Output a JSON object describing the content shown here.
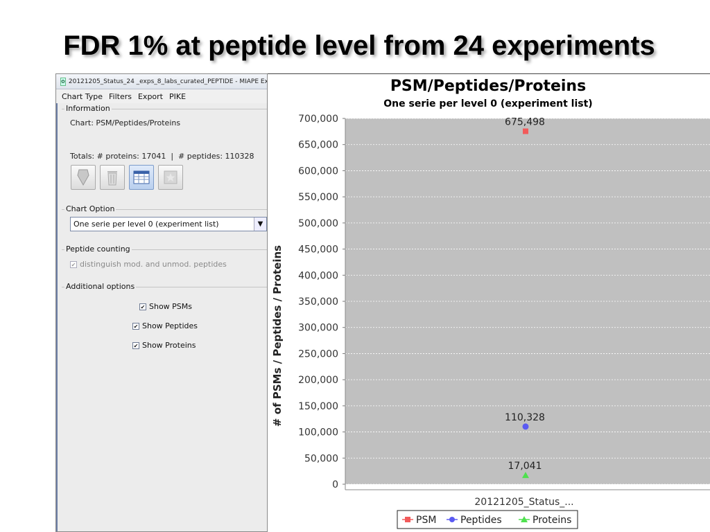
{
  "slide": {
    "title": "FDR 1% at peptide level from 24 experiments"
  },
  "window": {
    "title": "20121205_Status_24 _exps_8_labs_curated_PEPTIDE - MIAPE Ex",
    "menu": [
      "Chart Type",
      "Filters",
      "Export",
      "PIKE"
    ]
  },
  "information": {
    "label": "Information",
    "chart_text": "Chart: PSM/Peptides/Proteins",
    "totals_text": "Totals: # proteins: 17041  |  # peptides: 110328",
    "toolbar_icons": [
      "funnel-icon",
      "trash-icon",
      "table-icon",
      "star-icon"
    ]
  },
  "chart_option": {
    "label": "Chart Option",
    "selected": "One serie per level 0 (experiment list)"
  },
  "peptide_counting": {
    "label": "Peptide counting",
    "checkbox_label": "distinguish mod. and unmod. peptides",
    "checked": true,
    "enabled": false
  },
  "additional_options": {
    "label": "Additional options",
    "items": [
      {
        "label": "Show PSMs",
        "checked": true
      },
      {
        "label": "Show Peptides",
        "checked": true
      },
      {
        "label": "Show Proteins",
        "checked": true
      }
    ]
  },
  "colors": {
    "psm": "#f25a5a",
    "peptides": "#5a5af2",
    "proteins": "#4fe04f",
    "plot_bg": "#c0c0c0"
  },
  "chart_data": {
    "type": "scatter",
    "title": "PSM/Peptides/Proteins",
    "subtitle": "One serie per level 0 (experiment list)",
    "ylabel": "# of PSMs / Peptides / Proteins",
    "xlabel": "",
    "categories": [
      "20121205_Status_..."
    ],
    "ylim": [
      0,
      700000
    ],
    "yticks": [
      0,
      50000,
      100000,
      150000,
      200000,
      250000,
      300000,
      350000,
      400000,
      450000,
      500000,
      550000,
      600000,
      650000,
      700000
    ],
    "ytick_labels": [
      "0",
      "50,000",
      "100,000",
      "150,000",
      "200,000",
      "250,000",
      "300,000",
      "350,000",
      "400,000",
      "450,000",
      "500,000",
      "550,000",
      "600,000",
      "650,000",
      "700,000"
    ],
    "grid": true,
    "legend_position": "bottom",
    "series": [
      {
        "name": "PSM",
        "marker": "square",
        "values": [
          675498
        ],
        "value_labels": [
          "675,498"
        ]
      },
      {
        "name": "Peptides",
        "marker": "circle",
        "values": [
          110328
        ],
        "value_labels": [
          "110,328"
        ]
      },
      {
        "name": "Proteins",
        "marker": "triangle",
        "values": [
          17041
        ],
        "value_labels": [
          "17,041"
        ]
      }
    ]
  }
}
